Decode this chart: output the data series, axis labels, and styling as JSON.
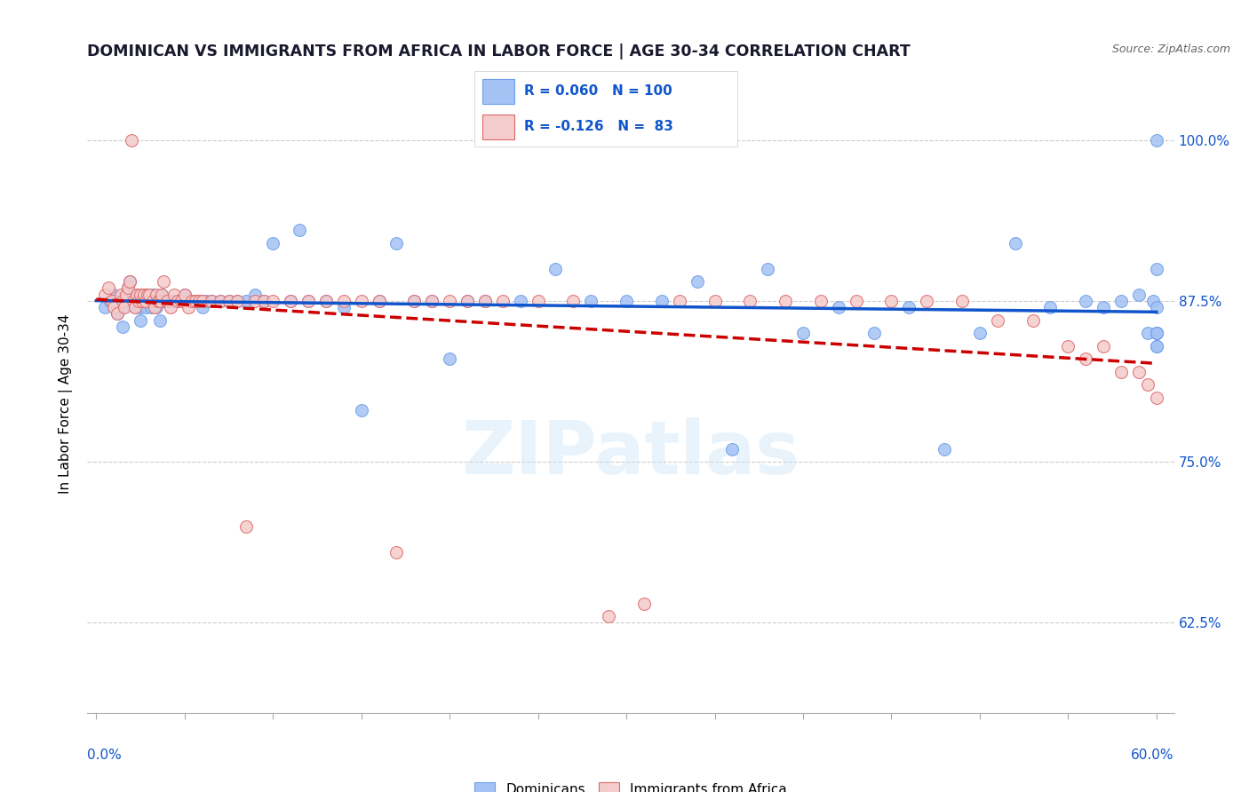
{
  "title": "DOMINICAN VS IMMIGRANTS FROM AFRICA IN LABOR FORCE | AGE 30-34 CORRELATION CHART",
  "source": "Source: ZipAtlas.com",
  "ylabel": "In Labor Force | Age 30-34",
  "ytick_labels": [
    "100.0%",
    "87.5%",
    "75.0%",
    "62.5%"
  ],
  "ytick_values": [
    1.0,
    0.875,
    0.75,
    0.625
  ],
  "xlim": [
    -0.005,
    0.61
  ],
  "ylim": [
    0.555,
    1.035
  ],
  "blue_R": 0.06,
  "blue_N": 100,
  "pink_R": -0.126,
  "pink_N": 83,
  "blue_color": "#a4c2f4",
  "pink_color": "#f4cccc",
  "blue_edge_color": "#6d9eeb",
  "pink_edge_color": "#e06666",
  "blue_line_color": "#1155cc",
  "pink_line_color": "#cc0000",
  "watermark": "ZIPatlas",
  "legend_dominicans": "Dominicans",
  "legend_africa": "Immigrants from Africa",
  "grid_color": "#cccccc",
  "marker_size": 100,
  "blue_x": [
    0.005,
    0.008,
    0.01,
    0.012,
    0.015,
    0.015,
    0.016,
    0.017,
    0.018,
    0.018,
    0.019,
    0.02,
    0.02,
    0.021,
    0.022,
    0.022,
    0.023,
    0.024,
    0.025,
    0.025,
    0.026,
    0.026,
    0.027,
    0.028,
    0.028,
    0.029,
    0.03,
    0.031,
    0.031,
    0.032,
    0.033,
    0.034,
    0.035,
    0.036,
    0.036,
    0.037,
    0.038,
    0.04,
    0.041,
    0.042,
    0.044,
    0.046,
    0.048,
    0.05,
    0.052,
    0.055,
    0.058,
    0.06,
    0.062,
    0.065,
    0.07,
    0.075,
    0.08,
    0.085,
    0.09,
    0.095,
    0.1,
    0.11,
    0.115,
    0.12,
    0.13,
    0.14,
    0.15,
    0.16,
    0.17,
    0.18,
    0.19,
    0.2,
    0.21,
    0.22,
    0.24,
    0.26,
    0.28,
    0.3,
    0.32,
    0.34,
    0.36,
    0.38,
    0.4,
    0.42,
    0.44,
    0.46,
    0.48,
    0.5,
    0.52,
    0.54,
    0.56,
    0.57,
    0.58,
    0.59,
    0.595,
    0.598,
    0.6,
    0.6,
    0.6,
    0.6,
    0.6,
    0.6,
    0.6,
    0.6
  ],
  "blue_y": [
    0.87,
    0.875,
    0.88,
    0.865,
    0.855,
    0.87,
    0.875,
    0.88,
    0.875,
    0.885,
    0.89,
    0.875,
    0.88,
    0.875,
    0.87,
    0.875,
    0.88,
    0.875,
    0.86,
    0.87,
    0.875,
    0.88,
    0.875,
    0.87,
    0.875,
    0.88,
    0.875,
    0.87,
    0.875,
    0.88,
    0.875,
    0.87,
    0.875,
    0.86,
    0.875,
    0.88,
    0.875,
    0.875,
    0.875,
    0.875,
    0.875,
    0.875,
    0.875,
    0.88,
    0.875,
    0.875,
    0.875,
    0.87,
    0.875,
    0.875,
    0.875,
    0.875,
    0.875,
    0.875,
    0.88,
    0.875,
    0.92,
    0.875,
    0.93,
    0.875,
    0.875,
    0.87,
    0.79,
    0.875,
    0.92,
    0.875,
    0.875,
    0.83,
    0.875,
    0.875,
    0.875,
    0.9,
    0.875,
    0.875,
    0.875,
    0.89,
    0.76,
    0.9,
    0.85,
    0.87,
    0.85,
    0.87,
    0.76,
    0.85,
    0.92,
    0.87,
    0.875,
    0.87,
    0.875,
    0.88,
    0.85,
    0.875,
    0.9,
    0.85,
    0.85,
    0.87,
    1.0,
    0.85,
    0.84,
    0.84
  ],
  "pink_x": [
    0.005,
    0.007,
    0.009,
    0.01,
    0.012,
    0.014,
    0.015,
    0.016,
    0.017,
    0.018,
    0.019,
    0.02,
    0.021,
    0.022,
    0.023,
    0.024,
    0.025,
    0.026,
    0.027,
    0.028,
    0.029,
    0.03,
    0.032,
    0.033,
    0.034,
    0.035,
    0.036,
    0.037,
    0.038,
    0.04,
    0.042,
    0.044,
    0.046,
    0.048,
    0.05,
    0.052,
    0.054,
    0.056,
    0.058,
    0.06,
    0.065,
    0.07,
    0.075,
    0.08,
    0.085,
    0.09,
    0.095,
    0.1,
    0.11,
    0.12,
    0.13,
    0.14,
    0.15,
    0.16,
    0.17,
    0.18,
    0.19,
    0.2,
    0.21,
    0.22,
    0.23,
    0.25,
    0.27,
    0.29,
    0.31,
    0.33,
    0.35,
    0.37,
    0.39,
    0.41,
    0.43,
    0.45,
    0.47,
    0.49,
    0.51,
    0.53,
    0.55,
    0.56,
    0.57,
    0.58,
    0.59,
    0.595,
    0.6
  ],
  "pink_y": [
    0.88,
    0.885,
    0.875,
    0.87,
    0.865,
    0.88,
    0.875,
    0.87,
    0.88,
    0.885,
    0.89,
    1.0,
    0.875,
    0.87,
    0.88,
    0.875,
    0.88,
    0.875,
    0.88,
    0.875,
    0.88,
    0.88,
    0.875,
    0.87,
    0.88,
    0.875,
    0.875,
    0.88,
    0.89,
    0.875,
    0.87,
    0.88,
    0.875,
    0.875,
    0.88,
    0.87,
    0.875,
    0.875,
    0.875,
    0.875,
    0.875,
    0.875,
    0.875,
    0.875,
    0.7,
    0.875,
    0.875,
    0.875,
    0.875,
    0.875,
    0.875,
    0.875,
    0.875,
    0.875,
    0.68,
    0.875,
    0.875,
    0.875,
    0.875,
    0.875,
    0.875,
    0.875,
    0.875,
    0.63,
    0.64,
    0.875,
    0.875,
    0.875,
    0.875,
    0.875,
    0.875,
    0.875,
    0.875,
    0.875,
    0.86,
    0.86,
    0.84,
    0.83,
    0.84,
    0.82,
    0.82,
    0.81,
    0.8
  ]
}
